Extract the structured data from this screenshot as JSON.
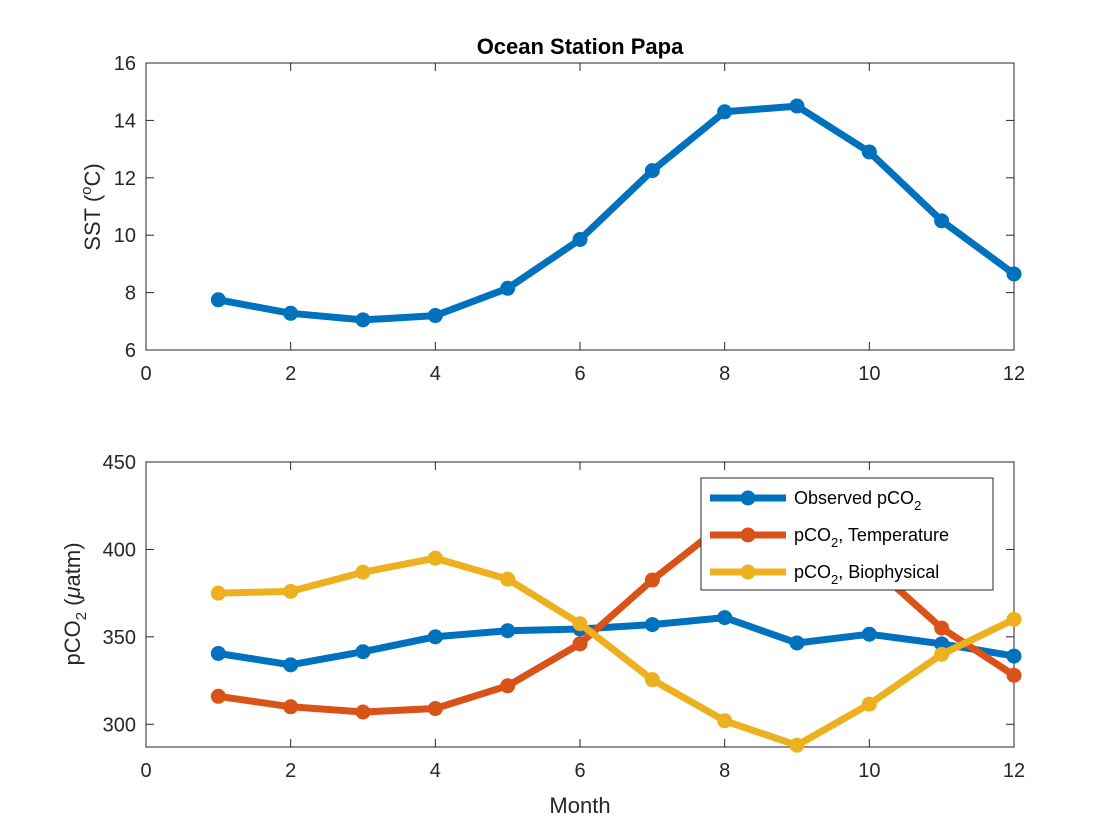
{
  "chart_data": [
    {
      "type": "line",
      "title": "Ocean Station Papa",
      "xlabel": "",
      "ylabel": "SST (°C)",
      "ylabel_parts": {
        "before": "SST (",
        "sup": "o",
        "after": "C)"
      },
      "xlim": [
        0,
        12
      ],
      "ylim": [
        6,
        16
      ],
      "xticks": [
        0,
        2,
        4,
        6,
        8,
        10,
        12
      ],
      "yticks": [
        6,
        8,
        10,
        12,
        14,
        16
      ],
      "grid": false,
      "series": [
        {
          "color": "#0072BD",
          "x": [
            1,
            2,
            3,
            4,
            5,
            6,
            7,
            8,
            9,
            10,
            11,
            12
          ],
          "y": [
            7.75,
            7.28,
            7.05,
            7.2,
            8.15,
            9.85,
            12.25,
            14.3,
            14.5,
            12.9,
            10.5,
            8.65
          ]
        }
      ]
    },
    {
      "type": "line",
      "title": "",
      "xlabel": "Month",
      "ylabel": "pCO2 (μatm)",
      "ylabel_parts": {
        "before": "pCO",
        "sub": "2",
        "after": " (",
        "italic": "μ",
        "end": "atm)"
      },
      "xlim": [
        0,
        12
      ],
      "ylim": [
        287,
        450
      ],
      "xticks": [
        0,
        2,
        4,
        6,
        8,
        10,
        12
      ],
      "yticks": [
        300,
        350,
        400,
        450
      ],
      "grid": false,
      "legend_position": "top-right",
      "series": [
        {
          "name": "Observed pCO2",
          "legend_parts": {
            "before": "Observed pCO",
            "sub": "2",
            "after": ""
          },
          "color": "#0072BD",
          "x": [
            1,
            2,
            3,
            4,
            5,
            6,
            7,
            8,
            9,
            10,
            11,
            12
          ],
          "y": [
            340.5,
            334,
            341.5,
            350,
            353.5,
            354.5,
            357,
            361,
            346.5,
            351.5,
            346,
            339
          ]
        },
        {
          "name": "pCO2, Temperature",
          "legend_parts": {
            "before": "pCO",
            "sub": "2",
            "after": ", Temperature"
          },
          "color": "#D95319",
          "x": [
            1,
            2,
            3,
            4,
            5,
            6,
            7,
            8,
            9,
            10,
            11,
            12
          ],
          "y": [
            316,
            310,
            307,
            309,
            322,
            346,
            382.5,
            415,
            418,
            392,
            355,
            328
          ]
        },
        {
          "name": "pCO2, Biophysical",
          "legend_parts": {
            "before": "pCO",
            "sub": "2",
            "after": ", Biophysical"
          },
          "color": "#EDB120",
          "x": [
            1,
            2,
            3,
            4,
            5,
            6,
            7,
            8,
            9,
            10,
            11,
            12
          ],
          "y": [
            375,
            376,
            387,
            395,
            383,
            357.5,
            325.5,
            302,
            288,
            311.5,
            340,
            360
          ]
        }
      ]
    }
  ]
}
